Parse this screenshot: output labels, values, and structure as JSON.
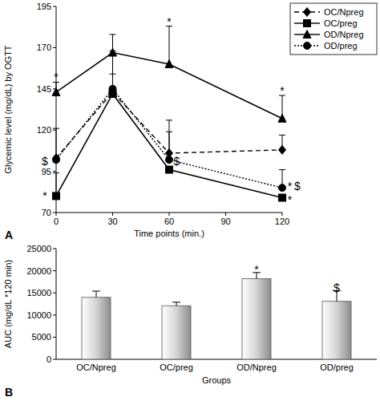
{
  "chart_data": [
    {
      "type": "line",
      "title": "A",
      "x_label": "Time points (min.)",
      "y_label": "Glycemic level (mg/dL) by OGTT",
      "x": [
        0,
        30,
        60,
        120
      ],
      "xlim": [
        0,
        120
      ],
      "xticks": [
        0,
        30,
        60,
        90,
        120
      ],
      "ylim": [
        70,
        195
      ],
      "yticks": [
        70,
        95,
        120,
        145,
        170,
        195
      ],
      "grid": false,
      "legend": "top-right",
      "series": [
        {
          "name": "OC/Npreg",
          "color": "#000000",
          "marker": "diamond",
          "line_style": "dashed",
          "values": [
            103,
            143,
            106,
            108
          ],
          "errors": [
            18,
            25,
            20,
            9
          ]
        },
        {
          "name": "OC/preg",
          "color": "#000000",
          "marker": "square",
          "line_style": "solid",
          "values": [
            80,
            142,
            96,
            79
          ],
          "errors": [
            14,
            12,
            0,
            0
          ]
        },
        {
          "name": "OD/Npreg",
          "color": "#000000",
          "marker": "triangle",
          "line_style": "solid",
          "values": [
            143,
            167,
            160,
            127
          ],
          "errors": [
            6,
            11,
            23,
            14
          ]
        },
        {
          "name": "OD/preg",
          "color": "#000000",
          "marker": "circle",
          "line_style": "dotted",
          "values": [
            102,
            145,
            102,
            85
          ],
          "errors": [
            0,
            23,
            17,
            11
          ]
        }
      ],
      "annotations": [
        {
          "text": "*",
          "x": 0,
          "y": 152
        },
        {
          "text": "*",
          "x": 60,
          "y": 186
        },
        {
          "text": "*",
          "x": 120,
          "y": 144
        },
        {
          "text": "*",
          "x": -6,
          "y": 80
        },
        {
          "text": "$",
          "x": -6,
          "y": 101
        },
        {
          "text": "$",
          "x": 64,
          "y": 101
        },
        {
          "text": "*",
          "x": 124,
          "y": 86
        },
        {
          "text": "$",
          "x": 128,
          "y": 86
        },
        {
          "text": "*",
          "x": 124,
          "y": 78
        }
      ]
    },
    {
      "type": "bar",
      "title": "B",
      "x_label": "Groups",
      "y_label": "AUC (mg/dL *120 min)",
      "categories": [
        "OC/Npreg",
        "OC/preg",
        "OD/Npreg",
        "OD/preg"
      ],
      "values": [
        14000,
        12100,
        18200,
        13100
      ],
      "errors": [
        1400,
        800,
        1400,
        2400
      ],
      "color": "#d4d4d4",
      "ylim": [
        0,
        25000
      ],
      "yticks": [
        0,
        5000,
        10000,
        15000,
        20000,
        25000
      ],
      "grid": false,
      "annotations": [
        {
          "text": "*",
          "x": "OD/Npreg",
          "y": 20200
        },
        {
          "text": "$",
          "x": "OD/preg",
          "y": 16200
        }
      ]
    }
  ]
}
